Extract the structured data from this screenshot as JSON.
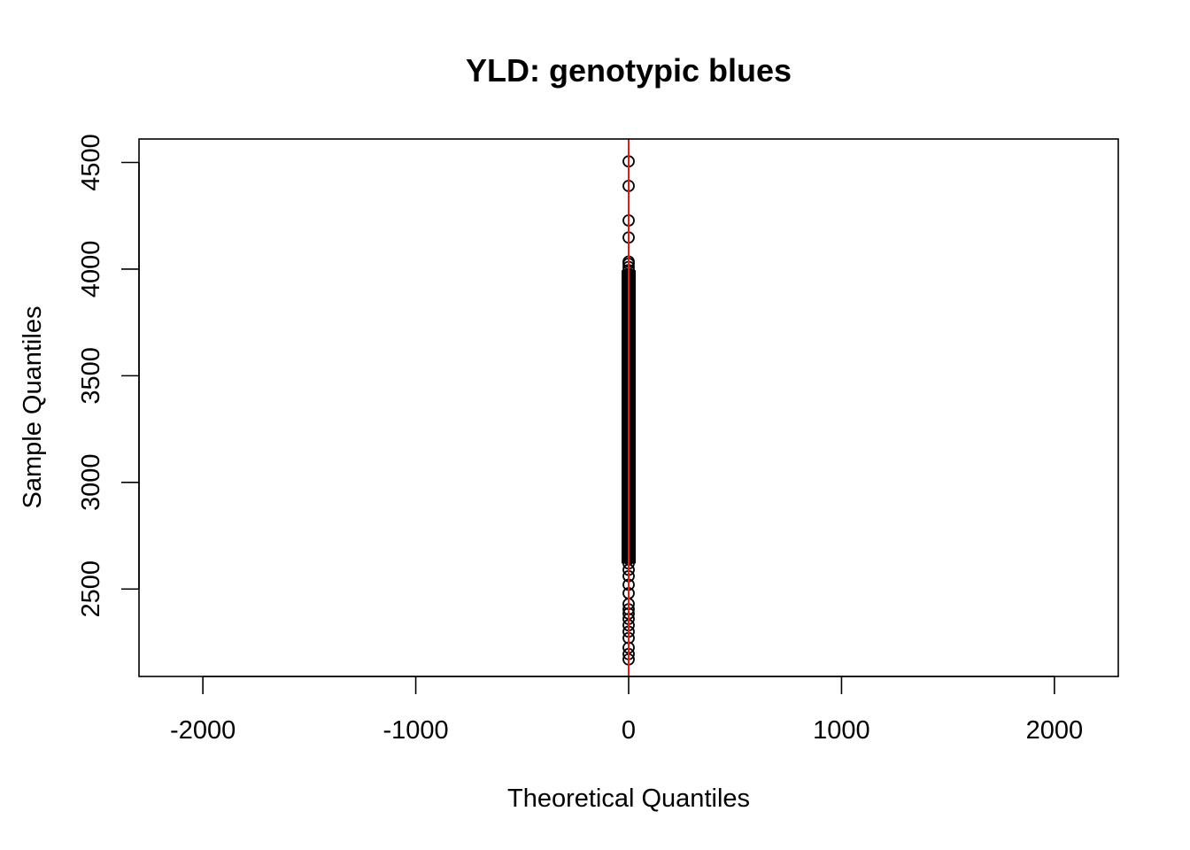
{
  "chart_data": {
    "type": "scatter",
    "title": "YLD: genotypic blues",
    "xlabel": "Theoretical Quantiles",
    "ylabel": "Sample Quantiles",
    "xlim": [
      -2300,
      2300
    ],
    "ylim": [
      2090,
      4610
    ],
    "x_ticks": [
      -2000,
      -1000,
      0,
      1000,
      2000
    ],
    "x_tick_labels": [
      "-2000",
      "-1000",
      "0",
      "1000",
      "2000"
    ],
    "y_ticks": [
      2500,
      3000,
      3500,
      4000,
      4500
    ],
    "y_tick_labels": [
      "2500",
      "3000",
      "3500",
      "4000",
      "4500"
    ],
    "grid": false,
    "legend": "none",
    "point_color": "#000000",
    "reference_line": {
      "orientation": "vertical",
      "x": 0,
      "color": "#e31a1c"
    },
    "series": [
      {
        "points": [
          [
            0,
            4505
          ],
          [
            0,
            4390
          ],
          [
            0,
            4228
          ],
          [
            0,
            4148
          ],
          [
            0,
            4035
          ],
          [
            0,
            4025
          ],
          [
            0,
            4010
          ],
          [
            0,
            3995
          ],
          [
            0,
            3975
          ],
          [
            0,
            3950
          ],
          [
            -3,
            3900
          ],
          [
            3,
            3780
          ],
          [
            -3,
            3650
          ],
          [
            3,
            3500
          ],
          [
            -3,
            3350
          ],
          [
            3,
            3200
          ],
          [
            -3,
            3050
          ],
          [
            3,
            2900
          ],
          [
            -3,
            2780
          ],
          [
            3,
            2700
          ],
          [
            0,
            2640
          ],
          [
            0,
            2620
          ],
          [
            0,
            2590
          ],
          [
            0,
            2560
          ],
          [
            0,
            2520
          ],
          [
            0,
            2480
          ],
          [
            0,
            2430
          ],
          [
            0,
            2405
          ],
          [
            0,
            2385
          ],
          [
            0,
            2360
          ],
          [
            0,
            2330
          ],
          [
            0,
            2300
          ],
          [
            0,
            2270
          ],
          [
            0,
            2225
          ],
          [
            0,
            2195
          ],
          [
            0,
            2170
          ]
        ]
      }
    ]
  }
}
